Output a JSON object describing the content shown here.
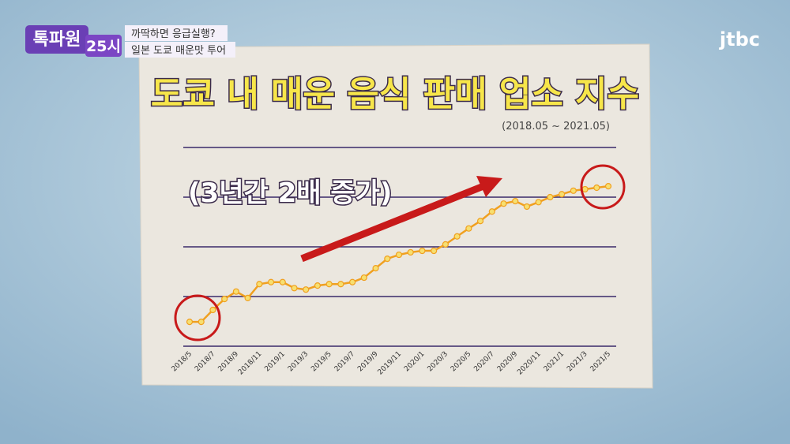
{
  "show": {
    "logo_top": "톡파원",
    "logo_num": "25시",
    "caption_1": "까딱하면 응급실행?",
    "caption_2": "일본 도쿄 매운맛 투어",
    "channel": "jtbc"
  },
  "chart_data": {
    "type": "line",
    "title": "도쿄 내 매운 음식 판매 업소 지수",
    "subtitle": "(2018.05 ~ 2021.05)",
    "annotation": "(3년간 2배 증가)",
    "categories": [
      "2018/5",
      null,
      "2018/7",
      null,
      "2018/9",
      null,
      "2018/11",
      null,
      "2019/1",
      null,
      "2019/3",
      null,
      "2019/5",
      null,
      "2019/7",
      null,
      "2019/9",
      null,
      "2019/11",
      null,
      "2020/1",
      null,
      "2020/3",
      null,
      "2020/5",
      null,
      "2020/7",
      null,
      "2020/9",
      null,
      "2020/11",
      null,
      "2021/1",
      null,
      "2021/3",
      null,
      "2021/5"
    ],
    "series": [
      {
        "color": "#f0a020",
        "values": [
          0.49,
          0.49,
          0.73,
          0.95,
          1.1,
          0.97,
          1.25,
          1.29,
          1.29,
          1.17,
          1.14,
          1.22,
          1.25,
          1.25,
          1.29,
          1.38,
          1.57,
          1.76,
          1.84,
          1.89,
          1.92,
          1.92,
          2.05,
          2.21,
          2.37,
          2.52,
          2.71,
          2.87,
          2.92,
          2.81,
          2.9,
          3.0,
          3.06,
          3.13,
          3.16,
          3.19,
          3.22
        ]
      }
    ],
    "ylim": [
      0,
      4
    ],
    "yticks": [
      1,
      2,
      3,
      4
    ],
    "grid": true
  }
}
